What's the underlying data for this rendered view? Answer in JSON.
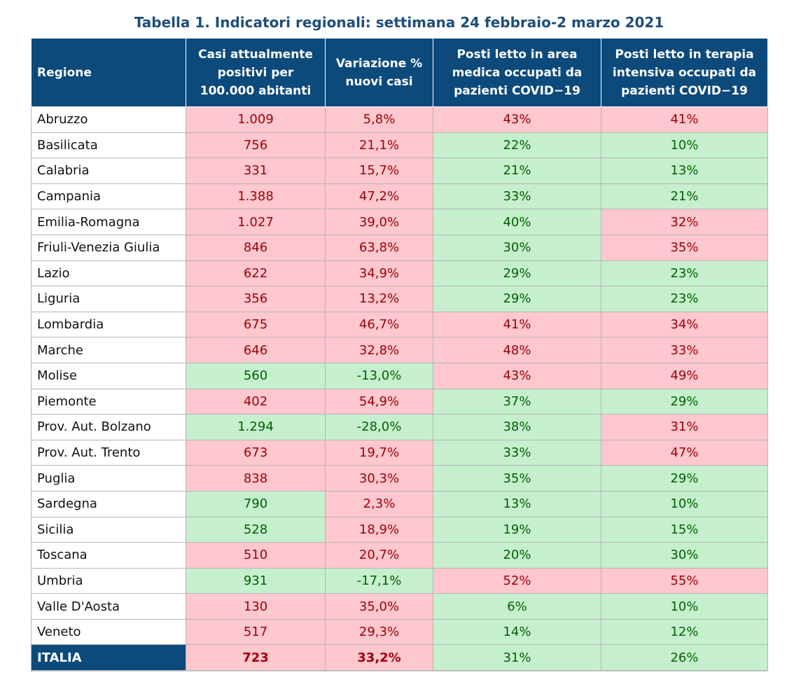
{
  "title": "Tabella 1. Indicatori regionali: settimana 24 febbraio-2 marzo 2021",
  "headers": {
    "regione": "Regione",
    "casi": "Casi attualmente positivi per 100.000 abitanti",
    "variazione": "Variazione % nuovi casi",
    "medica": "Posti letto in area medica occupati da pazienti COVID−19",
    "intensiva": "Posti letto in terapia intensiva occupati da pazienti COVID−19"
  },
  "colors": {
    "header_bg": "#0d4a7c",
    "bad_bg": "#ffc7ce",
    "bad_text": "#9c0006",
    "good_bg": "#c6efce",
    "good_text": "#006100"
  },
  "rows": [
    {
      "region": "Abruzzo",
      "casi": "1.009",
      "var": "5,8%",
      "med": "43%",
      "int": "41%"
    },
    {
      "region": "Basilicata",
      "casi": "756",
      "var": "21,1%",
      "med": "22%",
      "int": "10%"
    },
    {
      "region": "Calabria",
      "casi": "331",
      "var": "15,7%",
      "med": "21%",
      "int": "13%"
    },
    {
      "region": "Campania",
      "casi": "1.388",
      "var": "47,2%",
      "med": "33%",
      "int": "21%"
    },
    {
      "region": "Emilia-Romagna",
      "casi": "1.027",
      "var": "39,0%",
      "med": "40%",
      "int": "32%"
    },
    {
      "region": "Friuli-Venezia Giulia",
      "casi": "846",
      "var": "63,8%",
      "med": "30%",
      "int": "35%"
    },
    {
      "region": "Lazio",
      "casi": "622",
      "var": "34,9%",
      "med": "29%",
      "int": "23%"
    },
    {
      "region": "Liguria",
      "casi": "356",
      "var": "13,2%",
      "med": "29%",
      "int": "23%"
    },
    {
      "region": "Lombardia",
      "casi": "675",
      "var": "46,7%",
      "med": "41%",
      "int": "34%"
    },
    {
      "region": "Marche",
      "casi": "646",
      "var": "32,8%",
      "med": "48%",
      "int": "33%"
    },
    {
      "region": "Molise",
      "casi": "560",
      "var": "-13,0%",
      "med": "43%",
      "int": "49%"
    },
    {
      "region": "Piemonte",
      "casi": "402",
      "var": "54,9%",
      "med": "37%",
      "int": "29%"
    },
    {
      "region": "Prov. Aut. Bolzano",
      "casi": "1.294",
      "var": "-28,0%",
      "med": "38%",
      "int": "31%"
    },
    {
      "region": "Prov. Aut. Trento",
      "casi": "673",
      "var": "19,7%",
      "med": "33%",
      "int": "47%"
    },
    {
      "region": "Puglia",
      "casi": "838",
      "var": "30,3%",
      "med": "35%",
      "int": "29%"
    },
    {
      "region": "Sardegna",
      "casi": "790",
      "var": "2,3%",
      "med": "13%",
      "int": "10%"
    },
    {
      "region": "Sicilia",
      "casi": "528",
      "var": "18,9%",
      "med": "19%",
      "int": "15%"
    },
    {
      "region": "Toscana",
      "casi": "510",
      "var": "20,7%",
      "med": "20%",
      "int": "30%"
    },
    {
      "region": "Umbria",
      "casi": "931",
      "var": "-17,1%",
      "med": "52%",
      "int": "55%"
    },
    {
      "region": "Valle D'Aosta",
      "casi": "130",
      "var": "35,0%",
      "med": "6%",
      "int": "10%"
    },
    {
      "region": "Veneto",
      "casi": "517",
      "var": "29,3%",
      "med": "14%",
      "int": "12%"
    },
    {
      "region": "ITALIA",
      "casi": "723",
      "var": "33,2%",
      "med": "31%",
      "int": "26%"
    }
  ]
}
